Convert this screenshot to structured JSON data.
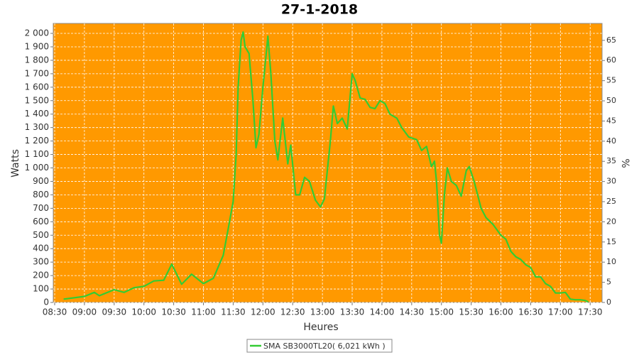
{
  "chart_data": {
    "type": "line",
    "title": "27-1-2018",
    "x_label": "Heures",
    "y_label": "Watts",
    "y2_label": "%",
    "background": "#ff9900",
    "grid": true,
    "xlim": [
      8.476,
      17.7
    ],
    "ylim": [
      0,
      2074
    ],
    "y2lim": [
      0,
      69.2
    ],
    "xticks": [
      {
        "value": 8.5,
        "label": "08:30"
      },
      {
        "value": 9,
        "label": "09:00"
      },
      {
        "value": 9.5,
        "label": "09:30"
      },
      {
        "value": 10,
        "label": "10:00"
      },
      {
        "value": 10.5,
        "label": "10:30"
      },
      {
        "value": 11,
        "label": "11:00"
      },
      {
        "value": 11.5,
        "label": "11:30"
      },
      {
        "value": 12,
        "label": "12:00"
      },
      {
        "value": 12.5,
        "label": "12:30"
      },
      {
        "value": 13,
        "label": "13:00"
      },
      {
        "value": 13.5,
        "label": "13:30"
      },
      {
        "value": 14,
        "label": "14:00"
      },
      {
        "value": 14.5,
        "label": "14:30"
      },
      {
        "value": 15,
        "label": "15:00"
      },
      {
        "value": 15.5,
        "label": "15:30"
      },
      {
        "value": 16,
        "label": "16:00"
      },
      {
        "value": 16.5,
        "label": "16:30"
      },
      {
        "value": 17,
        "label": "17:00"
      },
      {
        "value": 17.5,
        "label": "17:30"
      }
    ],
    "yticks": [
      0,
      100,
      200,
      300,
      400,
      500,
      600,
      700,
      800,
      900,
      {
        "value": 1000,
        "label": "1 000"
      },
      {
        "value": 1100,
        "label": "1 100"
      },
      {
        "value": 1200,
        "label": "1 200"
      },
      {
        "value": 1300,
        "label": "1 300"
      },
      {
        "value": 1400,
        "label": "1 400"
      },
      {
        "value": 1500,
        "label": "1 500"
      },
      {
        "value": 1600,
        "label": "1 600"
      },
      {
        "value": 1700,
        "label": "1 700"
      },
      {
        "value": 1800,
        "label": "1 800"
      },
      {
        "value": 1900,
        "label": "1 900"
      },
      {
        "value": 2000,
        "label": "2 000"
      }
    ],
    "y2ticks": [
      0,
      5,
      10,
      15,
      20,
      25,
      30,
      35,
      40,
      45,
      50,
      55,
      60,
      65
    ],
    "x": [
      8.65,
      9,
      9.167,
      9.25,
      9.5,
      9.667,
      9.833,
      10,
      10.167,
      10.333,
      10.467,
      10.633,
      10.8,
      11,
      11.167,
      11.333,
      11.417,
      11.5,
      11.55,
      11.583,
      11.633,
      11.667,
      11.7,
      11.767,
      11.833,
      11.883,
      11.933,
      12,
      12.067,
      12.083,
      12.133,
      12.2,
      12.25,
      12.333,
      12.417,
      12.467,
      12.55,
      12.617,
      12.7,
      12.783,
      12.883,
      12.967,
      13.033,
      13.133,
      13.183,
      13.25,
      13.333,
      13.417,
      13.5,
      13.55,
      13.633,
      13.717,
      13.8,
      13.883,
      13.967,
      14.05,
      14.133,
      14.25,
      14.333,
      14.45,
      14.583,
      14.667,
      14.75,
      14.833,
      14.883,
      14.917,
      14.967,
      15,
      15.05,
      15.1,
      15.167,
      15.25,
      15.333,
      15.417,
      15.467,
      15.55,
      15.667,
      15.75,
      15.867,
      16,
      16.083,
      16.167,
      16.25,
      16.333,
      16.417,
      16.5,
      16.583,
      16.667,
      16.75,
      16.833,
      16.917,
      17,
      17.083,
      17.167,
      17.25,
      17.333,
      17.417,
      17.467
    ],
    "series": [
      {
        "name": "SMA SB3000TL20( 6,021 kWh )",
        "color": "#33cc33",
        "axis": "y",
        "values": [
          25,
          45,
          75,
          50,
          95,
          75,
          110,
          120,
          160,
          165,
          285,
          135,
          210,
          140,
          180,
          350,
          550,
          750,
          1100,
          1600,
          1950,
          2010,
          1900,
          1850,
          1500,
          1150,
          1250,
          1600,
          1900,
          1980,
          1700,
          1200,
          1060,
          1370,
          1030,
          1170,
          800,
          800,
          930,
          900,
          760,
          710,
          770,
          1200,
          1460,
          1330,
          1370,
          1290,
          1700,
          1650,
          1520,
          1510,
          1450,
          1440,
          1500,
          1480,
          1400,
          1370,
          1300,
          1230,
          1210,
          1130,
          1160,
          1010,
          1050,
          900,
          500,
          440,
          800,
          1000,
          900,
          870,
          790,
          980,
          1010,
          900,
          700,
          630,
          580,
          500,
          470,
          380,
          340,
          320,
          280,
          260,
          190,
          190,
          140,
          120,
          70,
          70,
          75,
          25,
          20,
          20,
          15,
          5
        ]
      }
    ]
  }
}
